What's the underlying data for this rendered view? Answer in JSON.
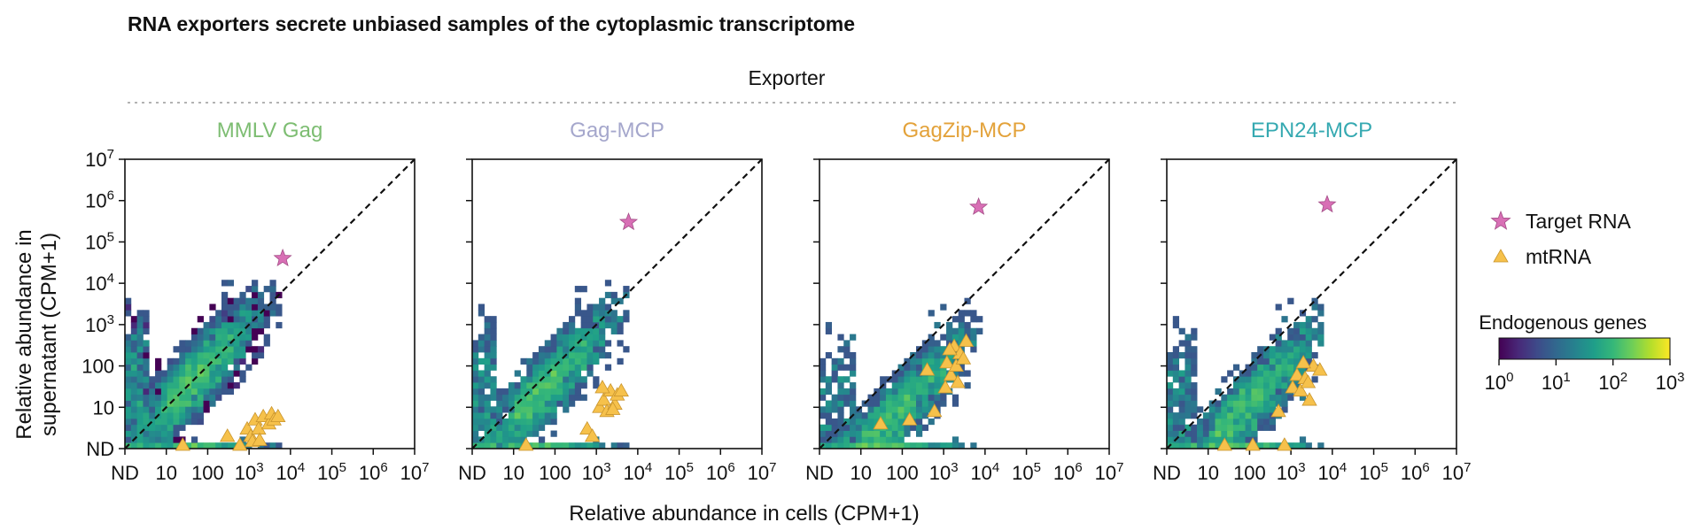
{
  "figure": {
    "title": "RNA exporters secrete unbiased samples of the cytoplasmic transcriptome",
    "group_label": "Exporter",
    "xlabel": "Relative abundance in cells (CPM+1)",
    "ylabel_line1": "Relative abundance in",
    "ylabel_line2": "supernatant (CPM+1)"
  },
  "axis": {
    "scale": "log10 with ND (not detected) at 0",
    "range_log10": [
      0,
      7
    ],
    "x_ticks": [
      "ND",
      "10",
      "100",
      "10^3",
      "10^4",
      "10^5",
      "10^6",
      "10^7"
    ],
    "y_ticks": [
      "ND",
      "10",
      "100",
      "10^3",
      "10^4",
      "10^5",
      "10^6",
      "10^7"
    ]
  },
  "legend": {
    "target_label": "Target RNA",
    "mt_label": "mtRNA",
    "colorbar_title": "Endogenous genes",
    "colorbar_ticks": [
      "10^0",
      "10^1",
      "10^2",
      "10^3"
    ],
    "target_color": "#d86fb5",
    "mt_color": "#f6c14b",
    "placement": "right"
  },
  "chart_data": [
    {
      "type": "heatmap",
      "title": "MMLV Gag",
      "title_color": "#7dbd72",
      "target_rna": {
        "x": 6500,
        "y": 40000
      },
      "mtrna": [
        {
          "x": 25,
          "y": 1
        },
        {
          "x": 300,
          "y": 2
        },
        {
          "x": 600,
          "y": 1.2
        },
        {
          "x": 900,
          "y": 3
        },
        {
          "x": 1100,
          "y": 2
        },
        {
          "x": 1400,
          "y": 5
        },
        {
          "x": 1700,
          "y": 3
        },
        {
          "x": 2200,
          "y": 6
        },
        {
          "x": 3000,
          "y": 4
        },
        {
          "x": 3500,
          "y": 7
        },
        {
          "x": 4000,
          "y": 5
        },
        {
          "x": 5000,
          "y": 6
        },
        {
          "x": 1200,
          "y": 1.5
        },
        {
          "x": 1800,
          "y": 1.6
        }
      ],
      "density_note": "genes concentrated along diagonal, supernatant roughly equal to cells, up to ~10^3"
    },
    {
      "type": "heatmap",
      "title": "Gag-MCP",
      "title_color": "#a5a7cc",
      "target_rna": {
        "x": 6000,
        "y": 300000
      },
      "mtrna": [
        {
          "x": 20,
          "y": 1
        },
        {
          "x": 600,
          "y": 3
        },
        {
          "x": 800,
          "y": 2
        },
        {
          "x": 1200,
          "y": 10
        },
        {
          "x": 1500,
          "y": 15
        },
        {
          "x": 1800,
          "y": 8
        },
        {
          "x": 2200,
          "y": 25
        },
        {
          "x": 2800,
          "y": 12
        },
        {
          "x": 3200,
          "y": 20
        },
        {
          "x": 4000,
          "y": 25
        },
        {
          "x": 1400,
          "y": 30
        },
        {
          "x": 2500,
          "y": 9
        }
      ],
      "density_note": "genes concentrated along diagonal"
    },
    {
      "type": "heatmap",
      "title": "GagZip-MCP",
      "title_color": "#e3a23a",
      "target_rna": {
        "x": 7000,
        "y": 700000
      },
      "mtrna": [
        {
          "x": 30,
          "y": 4
        },
        {
          "x": 150,
          "y": 5
        },
        {
          "x": 600,
          "y": 8
        },
        {
          "x": 400,
          "y": 80
        },
        {
          "x": 1200,
          "y": 120
        },
        {
          "x": 1500,
          "y": 60
        },
        {
          "x": 1800,
          "y": 300
        },
        {
          "x": 2000,
          "y": 100
        },
        {
          "x": 2500,
          "y": 200
        },
        {
          "x": 3000,
          "y": 150
        },
        {
          "x": 3500,
          "y": 400
        },
        {
          "x": 1400,
          "y": 250
        },
        {
          "x": 2200,
          "y": 40
        },
        {
          "x": 1100,
          "y": 30
        }
      ],
      "density_note": "genes concentrated along diagonal with band at ND supernatant"
    },
    {
      "type": "heatmap",
      "title": "EPN24-MCP",
      "title_color": "#35a9b1",
      "target_rna": {
        "x": 7500,
        "y": 800000
      },
      "mtrna": [
        {
          "x": 25,
          "y": 1
        },
        {
          "x": 120,
          "y": 1.2
        },
        {
          "x": 500,
          "y": 8
        },
        {
          "x": 700,
          "y": 1
        },
        {
          "x": 1100,
          "y": 30
        },
        {
          "x": 1400,
          "y": 60
        },
        {
          "x": 1700,
          "y": 25
        },
        {
          "x": 2200,
          "y": 50
        },
        {
          "x": 2800,
          "y": 15
        },
        {
          "x": 3500,
          "y": 100
        },
        {
          "x": 5000,
          "y": 80
        },
        {
          "x": 2000,
          "y": 120
        },
        {
          "x": 2600,
          "y": 40
        }
      ],
      "density_note": "genes concentrated along diagonal"
    }
  ]
}
